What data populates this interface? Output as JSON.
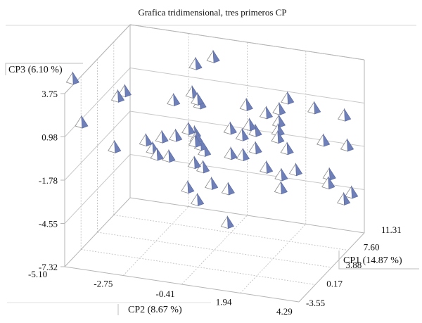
{
  "chart_data": {
    "type": "scatter3d",
    "title": "Grafica tridimensional, tres primeros CP",
    "xlabel": "CP2 (8.67 %)",
    "ylabel": "CP1 (14.87 %)",
    "zlabel": "CP3 (6.10 %)",
    "x_ticks": [
      "-5.10",
      "-2.75",
      "-0.41",
      "1.94",
      "4.29"
    ],
    "y_ticks": [
      "-3.55",
      "0.17",
      "3.88",
      "7.60",
      "11.31"
    ],
    "z_ticks": [
      "-7.32",
      "-4.55",
      "-1.78",
      "0.98",
      "3.75"
    ],
    "xlim": [
      -5.1,
      4.29
    ],
    "ylim": [
      -3.55,
      11.31
    ],
    "zlim": [
      -7.32,
      3.75
    ],
    "grid": true,
    "marker": "pyramid",
    "marker_color": "#6f7fb8",
    "points": [
      {
        "x": -5.52,
        "y": 0.64,
        "z": 3.4
      },
      {
        "x": -4.8,
        "y": -1.43,
        "z": 1.39
      },
      {
        "x": -4.42,
        "y": 4.66,
        "z": 1.33
      },
      {
        "x": -4.15,
        "y": 4.71,
        "z": 1.72
      },
      {
        "x": -3.86,
        "y": 0.73,
        "z": -0.61
      },
      {
        "x": -3.31,
        "y": 4.73,
        "z": -1.23
      },
      {
        "x": -3.07,
        "y": 4.92,
        "z": -1.75
      },
      {
        "x": -2.84,
        "y": 5.71,
        "z": -1.21
      },
      {
        "x": -2.79,
        "y": 4.32,
        "z": -1.9
      },
      {
        "x": -2.8,
        "y": 8.14,
        "z": 0.45
      },
      {
        "x": -2.49,
        "y": 6.85,
        "z": -1.37
      },
      {
        "x": -2.17,
        "y": 3.49,
        "z": -1.62
      },
      {
        "x": -2.09,
        "y": 9.12,
        "z": 2.64
      },
      {
        "x": -2.02,
        "y": 7.95,
        "z": 1.19
      },
      {
        "x": -1.8,
        "y": 7.9,
        "z": 0.81
      },
      {
        "x": -1.73,
        "y": 5.45,
        "z": -0.34
      },
      {
        "x": -1.75,
        "y": 8.15,
        "z": 0.5
      },
      {
        "x": -1.69,
        "y": 6.6,
        "z": -0.89
      },
      {
        "x": -1.59,
        "y": 6.19,
        "z": -1.32
      },
      {
        "x": -1.57,
        "y": 10.18,
        "z": 2.9
      },
      {
        "x": -1.57,
        "y": 6.32,
        "z": -1.11
      },
      {
        "x": -1.41,
        "y": 4.98,
        "z": -2.29
      },
      {
        "x": -1.4,
        "y": 6.37,
        "z": -1.54
      },
      {
        "x": -1.25,
        "y": 6.38,
        "z": -1.89
      },
      {
        "x": -1.26,
        "y": 2.63,
        "z": -3.13
      },
      {
        "x": -1.19,
        "y": 5.71,
        "z": -2.73
      },
      {
        "x": -0.84,
        "y": 2.45,
        "z": -3.78
      },
      {
        "x": -0.6,
        "y": 4.29,
        "z": -3.23
      },
      {
        "x": -0.39,
        "y": 7.36,
        "z": -0.56
      },
      {
        "x": -0.22,
        "y": 6.52,
        "z": -1.88
      },
      {
        "x": -0.07,
        "y": 9.21,
        "z": 0.48
      },
      {
        "x": 0.01,
        "y": 7.82,
        "z": -1.02
      },
      {
        "x": 0.03,
        "y": 4.5,
        "z": -3.48
      },
      {
        "x": 0.17,
        "y": 8.56,
        "z": -0.55
      },
      {
        "x": 0.2,
        "y": 6.9,
        "z": -1.97
      },
      {
        "x": 0.38,
        "y": 8.7,
        "z": -0.92
      },
      {
        "x": 0.39,
        "y": 2.31,
        "z": -4.89
      },
      {
        "x": 0.54,
        "y": 7.82,
        "z": -1.73
      },
      {
        "x": 0.64,
        "y": 9.69,
        "z": -0.01
      },
      {
        "x": 1.06,
        "y": 10.26,
        "z": 0.17
      },
      {
        "x": 1.21,
        "y": 11.3,
        "z": 0.58
      },
      {
        "x": 1.16,
        "y": 9.62,
        "z": -0.41
      },
      {
        "x": 1.21,
        "y": 9.16,
        "z": -0.82
      },
      {
        "x": 1.23,
        "y": 8.98,
        "z": -1.22
      },
      {
        "x": 1.15,
        "y": 6.84,
        "z": -2.53
      },
      {
        "x": 1.65,
        "y": 8.72,
        "z": -1.77
      },
      {
        "x": 1.68,
        "y": 7.24,
        "z": -3.0
      },
      {
        "x": 1.85,
        "y": 6.18,
        "z": -3.48
      },
      {
        "x": 2.21,
        "y": 7.52,
        "z": -2.63
      },
      {
        "x": 2.36,
        "y": 10.85,
        "z": 0.37
      },
      {
        "x": 2.97,
        "y": 9.47,
        "z": -1.15
      },
      {
        "x": 3.4,
        "y": 8.4,
        "z": -2.89
      },
      {
        "x": 3.43,
        "y": 8.0,
        "z": -3.33
      },
      {
        "x": 3.52,
        "y": 11.14,
        "z": 0.1
      },
      {
        "x": 3.78,
        "y": 10.29,
        "z": -1.51
      },
      {
        "x": 4.05,
        "y": 7.98,
        "z": -4.2
      },
      {
        "x": 4.29,
        "y": 8.39,
        "z": -3.84
      }
    ]
  }
}
